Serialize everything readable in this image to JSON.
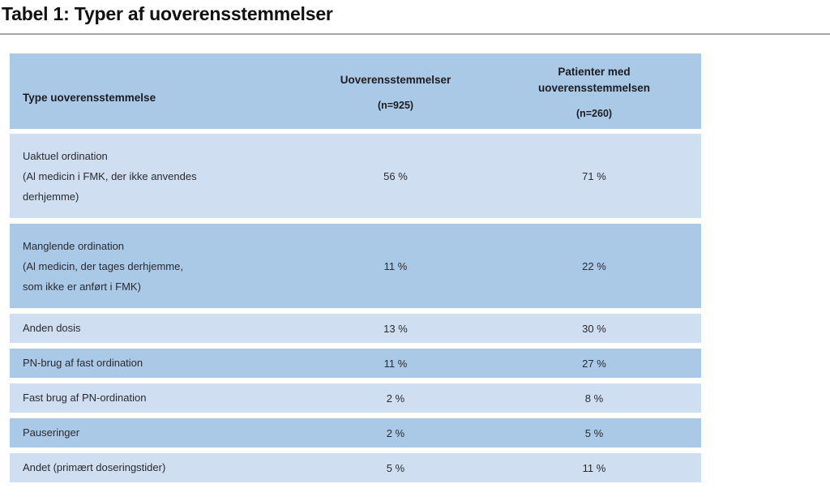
{
  "page_title": "Tabel 1: Typer af uoverensstemmelser",
  "colors": {
    "header_bg": "#a9c9e7",
    "row_dark_bg": "#a9c9e7",
    "row_light_bg": "#cfdff1",
    "title_rule": "#a5a5a5",
    "text": "#2a2a31"
  },
  "table": {
    "header": {
      "col1": {
        "label": "Type uoverensstemmelse"
      },
      "col2": {
        "label": "Uoverensstemmelser",
        "sub": "(n=925)"
      },
      "col3": {
        "label": "Patienter med\nuoverensstemmelsen",
        "sub": "(n=260)"
      }
    },
    "rows": [
      {
        "type": "Uaktuel ordination\n(Al medicin i FMK, der ikke anvendes\nderhjemme)",
        "uoverensstemmelser": "56 %",
        "patienter": "71 %",
        "tall": true
      },
      {
        "type": "Manglende ordination\n(Al medicin, der tages derhjemme,\nsom ikke er anført i FMK)",
        "uoverensstemmelser": "11 %",
        "patienter": "22 %",
        "tall": true
      },
      {
        "type": "Anden dosis",
        "uoverensstemmelser": "13 %",
        "patienter": "30 %",
        "tall": false
      },
      {
        "type": "PN-brug af fast ordination",
        "uoverensstemmelser": "11 %",
        "patienter": "27 %",
        "tall": false
      },
      {
        "type": "Fast brug af PN-ordination",
        "uoverensstemmelser": "2 %",
        "patienter": "8 %",
        "tall": false
      },
      {
        "type": "Pauseringer",
        "uoverensstemmelser": "2 %",
        "patienter": "5 %",
        "tall": false
      },
      {
        "type": "Andet (primært doseringstider)",
        "uoverensstemmelser": "5 %",
        "patienter": "11 %",
        "tall": false
      }
    ]
  }
}
